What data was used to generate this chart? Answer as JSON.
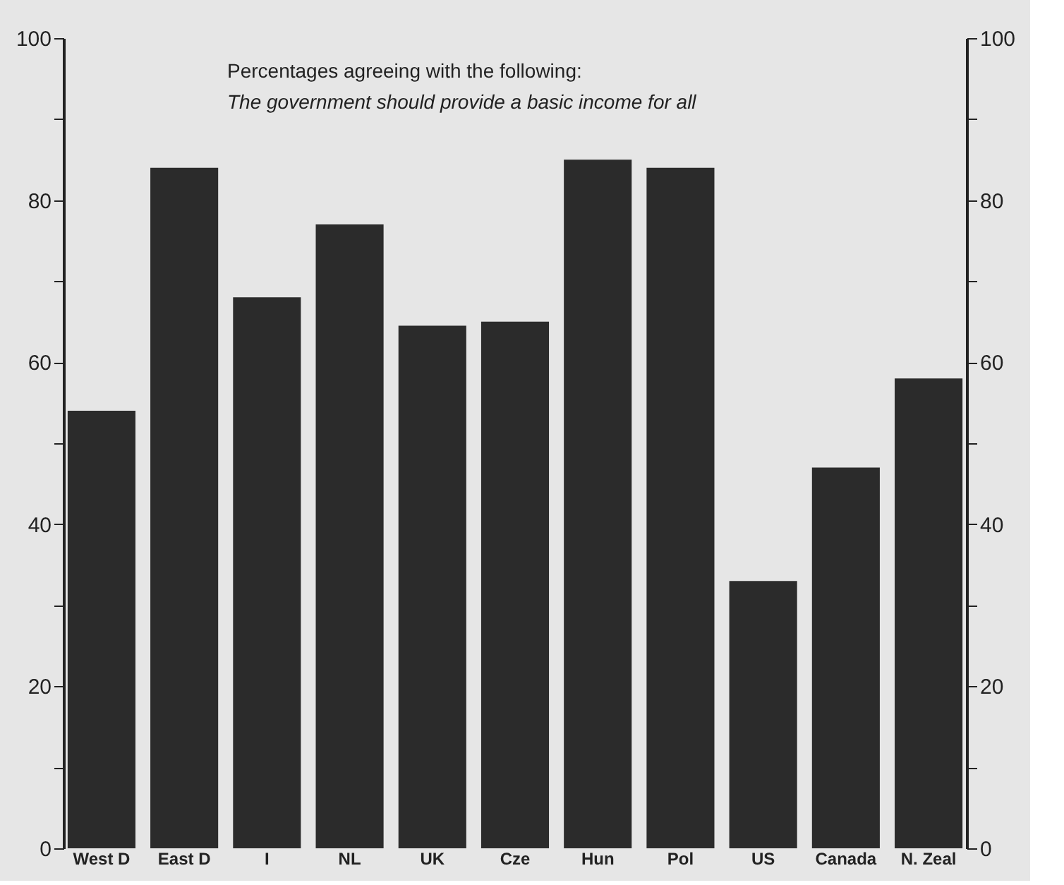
{
  "chart_data": {
    "type": "bar",
    "categories": [
      "West D",
      "East D",
      "I",
      "NL",
      "UK",
      "Cze",
      "Hun",
      "Pol",
      "US",
      "Canada",
      "N. Zeal"
    ],
    "values": [
      54,
      84,
      68,
      77,
      64.5,
      65,
      85,
      84,
      33,
      47,
      58
    ],
    "color": "#2b2b2b",
    "ylim": [
      0,
      100
    ],
    "yticks": [
      0,
      {
        "value": 10,
        "label": null
      },
      20,
      {
        "value": 30,
        "label": null
      },
      40,
      {
        "value": 50,
        "label": null
      },
      60,
      {
        "value": 70,
        "label": null
      },
      80,
      {
        "value": 90,
        "label": null
      },
      100
    ],
    "y2lim": [
      0,
      100
    ],
    "y2ticks": [
      0,
      {
        "value": 10,
        "label": null
      },
      20,
      {
        "value": 30,
        "label": null
      },
      40,
      {
        "value": 50,
        "label": null
      },
      60,
      {
        "value": 70,
        "label": null
      },
      80,
      {
        "value": 90,
        "label": null
      },
      100
    ],
    "annotations": [
      "Percentages agreeing with the following:",
      "The government should provide a basic income for all"
    ],
    "grid": false
  }
}
